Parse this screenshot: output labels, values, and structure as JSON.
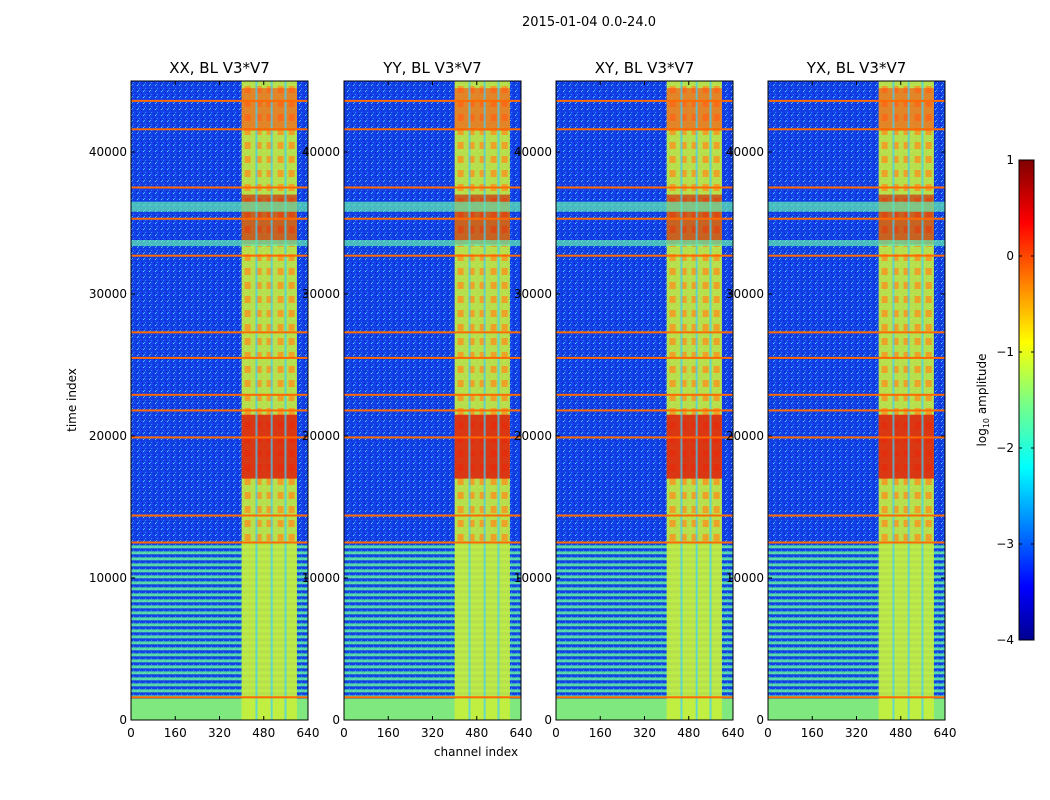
{
  "chart_data": {
    "type": "heatmap",
    "suptitle": "2015-01-04 0.0-24.0",
    "xlabel": "channel index",
    "ylabel": "time index",
    "xlim": [
      0,
      640
    ],
    "ylim": [
      0,
      45000
    ],
    "xticks": [
      0,
      160,
      320,
      480,
      640
    ],
    "yticks": [
      0,
      10000,
      20000,
      30000,
      40000
    ],
    "panels": [
      {
        "title": "XX, BL V3*V7"
      },
      {
        "title": "YY, BL V3*V7"
      },
      {
        "title": "XY, BL V3*V7"
      },
      {
        "title": "YX, BL V3*V7"
      }
    ],
    "colorbar": {
      "label": "log10 amplitude",
      "label_main": "log",
      "label_sub": "10",
      "label_rest": " amplitude",
      "min": -4,
      "max": 1,
      "ticks": [
        1,
        0,
        -1,
        -2,
        -3,
        -4
      ],
      "tick_labels": [
        "1",
        "0",
        "−1",
        "−2",
        "−3",
        "−4"
      ],
      "colormap": "jet"
    },
    "features": {
      "active_channel_range": [
        400,
        600
      ],
      "bright_time_band": [
        17000,
        21500
      ],
      "horizontal_rfi_rows": [
        1600,
        12500,
        14400,
        19900,
        21800,
        22900,
        25500,
        27300,
        32700,
        35300,
        37500,
        41600,
        43600
      ]
    }
  }
}
